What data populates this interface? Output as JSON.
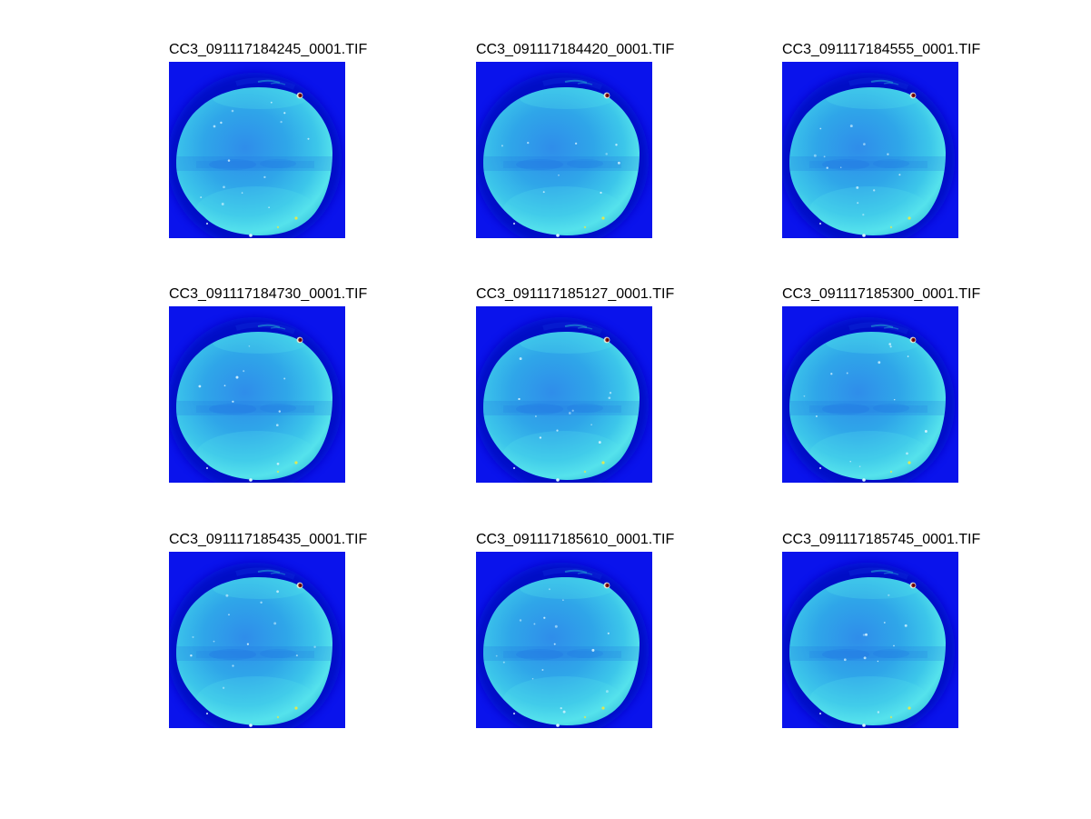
{
  "figure": {
    "type": "image-montage",
    "description": "3x3 montage of false-color (jet colormap) TIF sample images, each titled with its filename",
    "grid": {
      "rows": 3,
      "cols": 3
    },
    "tiles": [
      {
        "title": "CC3_091117184245_0001.TIF"
      },
      {
        "title": "CC3_091117184420_0001.TIF"
      },
      {
        "title": "CC3_091117184555_0001.TIF"
      },
      {
        "title": "CC3_091117184730_0001.TIF"
      },
      {
        "title": "CC3_091117185127_0001.TIF"
      },
      {
        "title": "CC3_091117185300_0001.TIF"
      },
      {
        "title": "CC3_091117185435_0001.TIF"
      },
      {
        "title": "CC3_091117185610_0001.TIF"
      },
      {
        "title": "CC3_091117185745_0001.TIF"
      }
    ],
    "palette": {
      "page_background": "#ffffff",
      "title_text": "#000000",
      "field_blue": "#0a13ec",
      "halo_blue": "#0411c4",
      "blob_center": "#2f8dea",
      "blob_mid": "#2fa6e9",
      "blob_outer": "#3cc6ea",
      "blob_rim": "#55e2ec",
      "blob_rim_fade": "#3bc8e0",
      "band_shadow": "#1c6fe2",
      "smudge_dark": "#0a28d8",
      "smudge_teal": "#1f9fd0",
      "speckle": "#d8f4ff",
      "hot_spot_core": "#8a1010",
      "hot_spot_ring": "#f0efd6",
      "yellow_speck": "#e8e84a"
    }
  }
}
